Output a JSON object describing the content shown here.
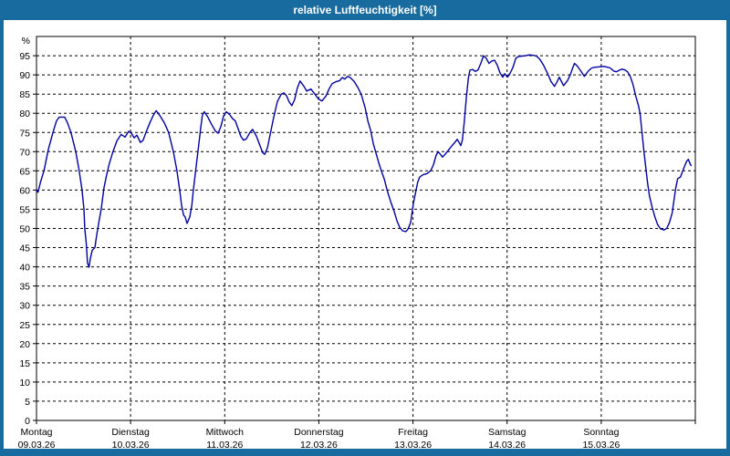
{
  "window": {
    "title": "relative Luftfeuchtigkeit [%]"
  },
  "colors": {
    "chrome_blue": "#186b9e",
    "line_blue": "#0000a0",
    "plot_bg": "#ffffff",
    "grid_black": "#000000",
    "title_text": "#ffffff"
  },
  "chart_data": {
    "type": "line",
    "title": "relative Luftfeuchtigkeit [%]",
    "ylabel": "%",
    "ylim": [
      0,
      100
    ],
    "yticks": [
      0,
      5,
      10,
      15,
      20,
      25,
      30,
      35,
      40,
      45,
      50,
      55,
      60,
      65,
      70,
      75,
      80,
      85,
      90,
      95
    ],
    "xlim": [
      0,
      168
    ],
    "x_unit": "hours since Montag 00:00",
    "grid": true,
    "legend_position": "none",
    "days": [
      {
        "name": "Montag",
        "date": "09.03.26",
        "hour": 0
      },
      {
        "name": "Dienstag",
        "date": "10.03.26",
        "hour": 24
      },
      {
        "name": "Mittwoch",
        "date": "11.03.26",
        "hour": 48
      },
      {
        "name": "Donnerstag",
        "date": "12.03.26",
        "hour": 72
      },
      {
        "name": "Freitag",
        "date": "13.03.26",
        "hour": 96
      },
      {
        "name": "Samstag",
        "date": "14.03.26",
        "hour": 120
      },
      {
        "name": "Sonntag",
        "date": "15.03.26",
        "hour": 144
      }
    ],
    "series": [
      {
        "name": "relative Luftfeuchtigkeit [%]",
        "color": "#0000a0",
        "points": [
          [
            0,
            60
          ],
          [
            0.4,
            59.4
          ],
          [
            1,
            62
          ],
          [
            1.9,
            65
          ],
          [
            3,
            70.5
          ],
          [
            4.2,
            75
          ],
          [
            5.1,
            78
          ],
          [
            5.8,
            79
          ],
          [
            7.2,
            79
          ],
          [
            7.9,
            77.5
          ],
          [
            8.8,
            75
          ],
          [
            10,
            70
          ],
          [
            10.9,
            65
          ],
          [
            11.6,
            60
          ],
          [
            12.1,
            55
          ],
          [
            12.3,
            50
          ],
          [
            12.7,
            46
          ],
          [
            13,
            41
          ],
          [
            13.4,
            39.9
          ],
          [
            13.7,
            42
          ],
          [
            14.2,
            44.3
          ],
          [
            14.9,
            45
          ],
          [
            15.3,
            48
          ],
          [
            15.8,
            51
          ],
          [
            16.5,
            55
          ],
          [
            17.2,
            60.5
          ],
          [
            17.9,
            64
          ],
          [
            18.6,
            67
          ],
          [
            19.5,
            70
          ],
          [
            20.5,
            72.8
          ],
          [
            21.6,
            74.5
          ],
          [
            22.6,
            73.8
          ],
          [
            23.5,
            75.3
          ],
          [
            24.2,
            74.8
          ],
          [
            24.9,
            73.6
          ],
          [
            25.6,
            74.3
          ],
          [
            26.5,
            72.4
          ],
          [
            27.2,
            73
          ],
          [
            27.9,
            75
          ],
          [
            28.9,
            77.5
          ],
          [
            29.8,
            79.5
          ],
          [
            30.5,
            80.7
          ],
          [
            31.4,
            79.5
          ],
          [
            32.6,
            77.5
          ],
          [
            33.7,
            75
          ],
          [
            34.9,
            70
          ],
          [
            35.8,
            65
          ],
          [
            36.5,
            60
          ],
          [
            37,
            56
          ],
          [
            37.5,
            53.5
          ],
          [
            37.9,
            53
          ],
          [
            38.4,
            51.3
          ],
          [
            39.1,
            53
          ],
          [
            39.6,
            56
          ],
          [
            40,
            60
          ],
          [
            40.7,
            66
          ],
          [
            41.4,
            72
          ],
          [
            41.9,
            76.5
          ],
          [
            42.3,
            79.5
          ],
          [
            42.8,
            80.4
          ],
          [
            43.7,
            79
          ],
          [
            44.7,
            77
          ],
          [
            45.6,
            75.4
          ],
          [
            46.3,
            74.8
          ],
          [
            47,
            76.5
          ],
          [
            47.7,
            79.3
          ],
          [
            48.4,
            80.4
          ],
          [
            49.3,
            79.6
          ],
          [
            50,
            78.6
          ],
          [
            50.7,
            78
          ],
          [
            51.4,
            76
          ],
          [
            52.1,
            74
          ],
          [
            52.8,
            73
          ],
          [
            53.5,
            73.3
          ],
          [
            54.4,
            75
          ],
          [
            55.1,
            75.8
          ],
          [
            56.1,
            74
          ],
          [
            57,
            71.5
          ],
          [
            57.7,
            69.7
          ],
          [
            58.2,
            69.3
          ],
          [
            58.9,
            71
          ],
          [
            59.6,
            74.5
          ],
          [
            60.5,
            79
          ],
          [
            61.4,
            83
          ],
          [
            62.4,
            85
          ],
          [
            63.1,
            85.3
          ],
          [
            63.8,
            84.5
          ],
          [
            64.4,
            83
          ],
          [
            65.1,
            82
          ],
          [
            65.8,
            83.5
          ],
          [
            66.5,
            86.5
          ],
          [
            67.2,
            88.4
          ],
          [
            68.2,
            87
          ],
          [
            68.9,
            85.8
          ],
          [
            70,
            86.3
          ],
          [
            71,
            85
          ],
          [
            71.9,
            83.7
          ],
          [
            72.8,
            83.2
          ],
          [
            73.8,
            84.5
          ],
          [
            74.7,
            86.5
          ],
          [
            75.4,
            87.7
          ],
          [
            76.3,
            88.2
          ],
          [
            77.3,
            88.5
          ],
          [
            78,
            89.3
          ],
          [
            78.6,
            88.9
          ],
          [
            79.3,
            89.6
          ],
          [
            80,
            89.3
          ],
          [
            81,
            88.3
          ],
          [
            81.9,
            86.8
          ],
          [
            82.8,
            85
          ],
          [
            83.8,
            81.5
          ],
          [
            84.5,
            78
          ],
          [
            85.2,
            75.5
          ],
          [
            85.9,
            72
          ],
          [
            86.6,
            69.5
          ],
          [
            87.3,
            67
          ],
          [
            88,
            64.8
          ],
          [
            88.7,
            62.8
          ],
          [
            89.4,
            60
          ],
          [
            90.3,
            57
          ],
          [
            91.2,
            54.5
          ],
          [
            91.9,
            52
          ],
          [
            92.6,
            50.3
          ],
          [
            93.3,
            49.4
          ],
          [
            94.2,
            49.2
          ],
          [
            94.7,
            49.8
          ],
          [
            95.4,
            51.5
          ],
          [
            96.1,
            56.5
          ],
          [
            96.8,
            60
          ],
          [
            97.2,
            62
          ],
          [
            97.7,
            63.4
          ],
          [
            98.6,
            64
          ],
          [
            99.6,
            64.3
          ],
          [
            100.5,
            65
          ],
          [
            101.2,
            66.5
          ],
          [
            101.9,
            69
          ],
          [
            102.4,
            70
          ],
          [
            103.1,
            69.2
          ],
          [
            103.5,
            68.6
          ],
          [
            104.2,
            69.3
          ],
          [
            104.9,
            70.2
          ],
          [
            105.9,
            71.5
          ],
          [
            106.6,
            72.3
          ],
          [
            107.3,
            73.2
          ],
          [
            107.7,
            72.5
          ],
          [
            108.2,
            71.6
          ],
          [
            108.6,
            73
          ],
          [
            109.1,
            78
          ],
          [
            109.6,
            84
          ],
          [
            110.1,
            89
          ],
          [
            110.5,
            91.2
          ],
          [
            111.2,
            91.4
          ],
          [
            111.9,
            90.9
          ],
          [
            112.6,
            91.3
          ],
          [
            113.3,
            93
          ],
          [
            114,
            95
          ],
          [
            114.7,
            94.3
          ],
          [
            115.4,
            93
          ],
          [
            116.1,
            93.6
          ],
          [
            116.8,
            93.8
          ],
          [
            117.5,
            92.5
          ],
          [
            118.2,
            90.5
          ],
          [
            118.9,
            89.4
          ],
          [
            119.4,
            90.3
          ],
          [
            120.1,
            89.4
          ],
          [
            120.8,
            90.5
          ],
          [
            121.5,
            92
          ],
          [
            122.2,
            94.3
          ],
          [
            122.9,
            94.8
          ],
          [
            123.8,
            94.9
          ],
          [
            124.7,
            95
          ],
          [
            125.6,
            95.2
          ],
          [
            126.6,
            95.1
          ],
          [
            127.5,
            94.9
          ],
          [
            128.4,
            94
          ],
          [
            129.3,
            92.5
          ],
          [
            130.3,
            90.4
          ],
          [
            131.2,
            88.3
          ],
          [
            132.1,
            87
          ],
          [
            132.8,
            88.3
          ],
          [
            133.3,
            89.4
          ],
          [
            134,
            88
          ],
          [
            134.4,
            87.2
          ],
          [
            135.4,
            88.5
          ],
          [
            136.1,
            90
          ],
          [
            136.8,
            92
          ],
          [
            137.2,
            93
          ],
          [
            137.9,
            92.3
          ],
          [
            138.8,
            91
          ],
          [
            139.7,
            89.6
          ],
          [
            140.7,
            91
          ],
          [
            141.6,
            91.8
          ],
          [
            142.5,
            92
          ],
          [
            143.4,
            92.1
          ],
          [
            144.7,
            92.2
          ],
          [
            145.6,
            92
          ],
          [
            146.3,
            91.8
          ],
          [
            147.2,
            91
          ],
          [
            147.9,
            90.8
          ],
          [
            148.6,
            91.2
          ],
          [
            149.3,
            91.5
          ],
          [
            150,
            91.3
          ],
          [
            150.7,
            90.8
          ],
          [
            151.4,
            89.6
          ],
          [
            152.1,
            87.5
          ],
          [
            152.8,
            84.5
          ],
          [
            153.5,
            82
          ],
          [
            153.9,
            80
          ],
          [
            154.4,
            75
          ],
          [
            154.9,
            70
          ],
          [
            155.3,
            66.5
          ],
          [
            155.8,
            62
          ],
          [
            156.3,
            58.5
          ],
          [
            157,
            55.5
          ],
          [
            157.7,
            53
          ],
          [
            158.4,
            51
          ],
          [
            159.1,
            49.9
          ],
          [
            160,
            49.6
          ],
          [
            160.7,
            50
          ],
          [
            161.4,
            51.5
          ],
          [
            162.1,
            54
          ],
          [
            162.5,
            57
          ],
          [
            163,
            60.5
          ],
          [
            163.5,
            63
          ],
          [
            164.2,
            63.4
          ],
          [
            164.6,
            64.5
          ],
          [
            165.3,
            66.3
          ],
          [
            165.8,
            67.5
          ],
          [
            166.2,
            68
          ],
          [
            166.7,
            66.8
          ],
          [
            166.9,
            66.4
          ]
        ]
      }
    ]
  }
}
